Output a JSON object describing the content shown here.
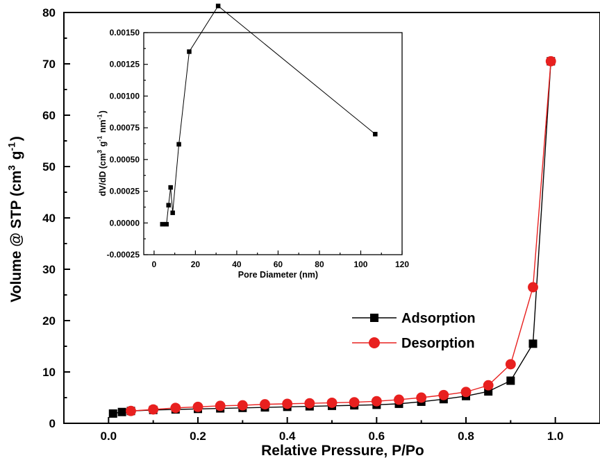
{
  "chart_data": [
    {
      "type": "line",
      "xlabel": "Relative Pressure, P/Po",
      "ylabel": "Volume @ STP (cm3 g-1)",
      "xlim": [
        -0.1,
        1.1
      ],
      "ylim": [
        0,
        80
      ],
      "xticks": [
        "0.0",
        "0.2",
        "0.4",
        "0.6",
        "0.8",
        "1.0"
      ],
      "yticks": [
        "0",
        "10",
        "20",
        "30",
        "40",
        "50",
        "60",
        "70",
        "80"
      ],
      "legend_position": "center-right",
      "series": [
        {
          "name": "Adsorption",
          "color": "#000000",
          "marker": "square",
          "x": [
            0.01,
            0.03,
            0.05,
            0.1,
            0.15,
            0.2,
            0.25,
            0.3,
            0.35,
            0.4,
            0.45,
            0.5,
            0.55,
            0.6,
            0.65,
            0.7,
            0.75,
            0.8,
            0.85,
            0.9,
            0.95,
            0.99
          ],
          "y": [
            1.9,
            2.2,
            2.4,
            2.6,
            2.7,
            2.8,
            2.9,
            3.0,
            3.1,
            3.2,
            3.3,
            3.4,
            3.5,
            3.6,
            3.8,
            4.2,
            4.7,
            5.3,
            6.2,
            8.3,
            15.5,
            70.5
          ]
        },
        {
          "name": "Desorption",
          "color": "#e8201f",
          "marker": "circle",
          "x": [
            0.05,
            0.1,
            0.15,
            0.2,
            0.25,
            0.3,
            0.35,
            0.4,
            0.45,
            0.5,
            0.55,
            0.6,
            0.65,
            0.7,
            0.75,
            0.8,
            0.85,
            0.9,
            0.95,
            0.99
          ],
          "y": [
            2.4,
            2.7,
            3.0,
            3.2,
            3.4,
            3.5,
            3.7,
            3.8,
            3.9,
            4.0,
            4.1,
            4.3,
            4.6,
            5.0,
            5.5,
            6.1,
            7.4,
            11.5,
            26.5,
            70.5
          ]
        }
      ]
    },
    {
      "type": "line",
      "inset": true,
      "xlabel": "Pore Diameter (nm)",
      "ylabel": "dV/dD (cm3 g-1 nm-1)",
      "xlim": [
        -5,
        120
      ],
      "ylim": [
        -0.00025,
        0.0015
      ],
      "xticks": [
        "0",
        "20",
        "40",
        "60",
        "80",
        "100",
        "120"
      ],
      "yticks": [
        "-0.00025",
        "0.00000",
        "0.00025",
        "0.00050",
        "0.00075",
        "0.00100",
        "0.00125",
        "0.00150"
      ],
      "series": [
        {
          "color": "#000000",
          "marker": "square",
          "x": [
            4,
            6,
            7,
            8,
            9,
            12,
            17,
            31,
            107
          ],
          "y": [
            -1e-05,
            -1e-05,
            0.00014,
            0.00028,
            8e-05,
            0.00062,
            0.00135,
            0.00171,
            0.0007
          ]
        }
      ]
    }
  ]
}
